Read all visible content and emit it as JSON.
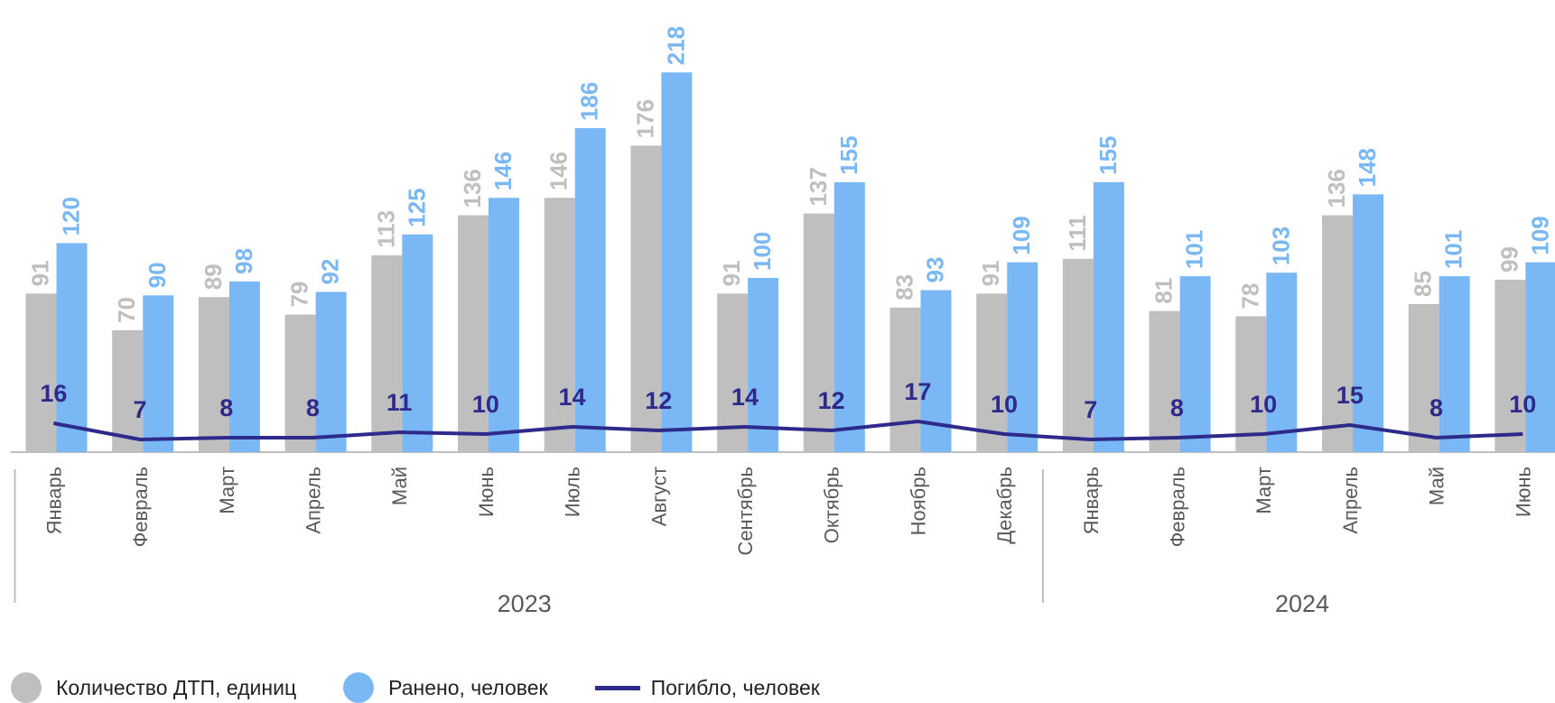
{
  "chart_data": {
    "type": "bar",
    "categories": [
      "Январь",
      "Февраль",
      "Март",
      "Апрель",
      "Май",
      "Июнь",
      "Июль",
      "Август",
      "Сентябрь",
      "Октябрь",
      "Ноябрь",
      "Декабрь",
      "Январь",
      "Февраль",
      "Март",
      "Апрель",
      "Май",
      "Июнь"
    ],
    "groups": [
      {
        "label": "2023",
        "count": 12
      },
      {
        "label": "2024",
        "count": 6
      }
    ],
    "series": [
      {
        "name": "Количество ДТП, единиц",
        "type": "bar",
        "color": "#bfbfbf",
        "values": [
          91,
          70,
          89,
          79,
          113,
          136,
          146,
          176,
          91,
          137,
          83,
          91,
          111,
          81,
          78,
          136,
          85,
          99
        ]
      },
      {
        "name": "Ранено, человек",
        "type": "bar",
        "color": "#7ab8f5",
        "values": [
          120,
          90,
          98,
          92,
          125,
          146,
          186,
          218,
          100,
          155,
          93,
          109,
          155,
          101,
          103,
          148,
          101,
          109
        ]
      },
      {
        "name": "Погибло, человек",
        "type": "line",
        "color": "#2e2a8c",
        "values": [
          16,
          7,
          8,
          8,
          11,
          10,
          14,
          12,
          14,
          12,
          17,
          10,
          7,
          8,
          10,
          15,
          8,
          10
        ]
      }
    ],
    "ylim": [
      0,
      218
    ],
    "grid": false,
    "legend_position": "bottom-left"
  },
  "legend": {
    "items": [
      {
        "label": "Количество ДТП, единиц",
        "color": "#bfbfbf",
        "shape": "circle"
      },
      {
        "label": "Ранено, человек",
        "color": "#7ab8f5",
        "shape": "circle"
      },
      {
        "label": "Погибло, человек",
        "color": "#2e2a8c",
        "shape": "line"
      }
    ]
  }
}
